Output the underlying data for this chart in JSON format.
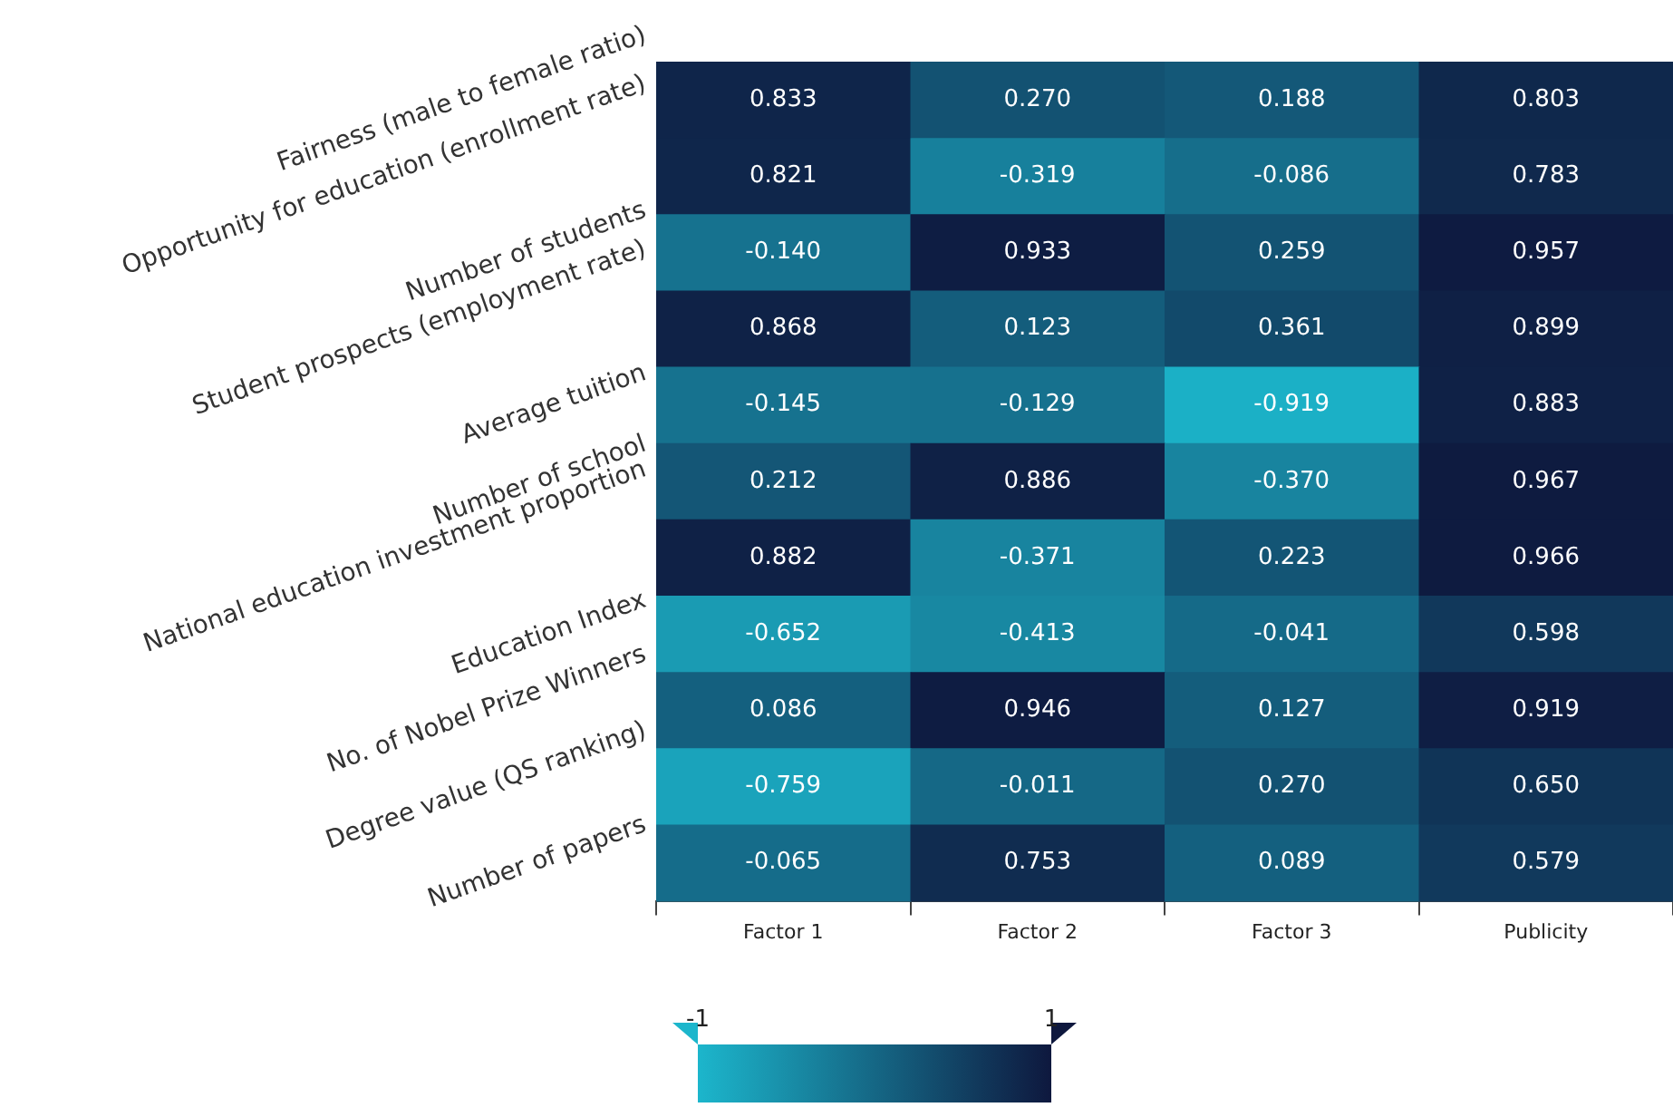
{
  "chart_data": {
    "type": "heatmap",
    "categories": [
      "Factor 1",
      "Factor 2",
      "Factor 3",
      "Publicity"
    ],
    "y_categories": [
      "Fairness (male to female ratio)",
      "Opportunity for education (enrollment rate)",
      "Number of students",
      "Student prospects (employment rate)",
      "Average tuition",
      "Number of school",
      "National education investment proportion",
      "Education Index",
      "No. of Nobel Prize Winners",
      "Degree value (QS ranking)",
      "Number of papers"
    ],
    "cells": [
      [
        0.833,
        0.27,
        0.188,
        0.803
      ],
      [
        0.821,
        -0.319,
        -0.086,
        0.783
      ],
      [
        -0.14,
        0.933,
        0.259,
        0.957
      ],
      [
        0.868,
        0.123,
        0.361,
        0.899
      ],
      [
        -0.145,
        -0.129,
        -0.919,
        0.883
      ],
      [
        0.212,
        0.886,
        -0.37,
        0.967
      ],
      [
        0.882,
        -0.371,
        0.223,
        0.966
      ],
      [
        -0.652,
        -0.413,
        -0.041,
        0.598
      ],
      [
        0.086,
        0.946,
        0.127,
        0.919
      ],
      [
        -0.759,
        -0.011,
        0.27,
        0.65
      ],
      [
        -0.065,
        0.753,
        0.089,
        0.579
      ]
    ],
    "cell_labels": [
      [
        "0.833",
        "0.270",
        "0.188",
        "0.803"
      ],
      [
        "0.821",
        "-0.319",
        "-0.086",
        "0.783"
      ],
      [
        "-0.140",
        "0.933",
        "0.259",
        "0.957"
      ],
      [
        "0.868",
        "0.123",
        "0.361",
        "0.899"
      ],
      [
        "-0.145",
        "-0.129",
        "-0.919",
        "0.883"
      ],
      [
        "0.212",
        "0.886",
        "-0.370",
        "0.967"
      ],
      [
        "0.882",
        "-0.371",
        "0.223",
        "0.966"
      ],
      [
        "-0.652",
        "-0.413",
        "-0.041",
        "0.598"
      ],
      [
        "0.086",
        "0.946",
        "0.127",
        "0.919"
      ],
      [
        "-0.759",
        "-0.011",
        "0.270",
        "0.650"
      ],
      [
        "-0.065",
        "0.753",
        "0.089",
        "0.579"
      ]
    ],
    "clim": [
      -1,
      1
    ],
    "cticks": [
      -1,
      1
    ]
  }
}
